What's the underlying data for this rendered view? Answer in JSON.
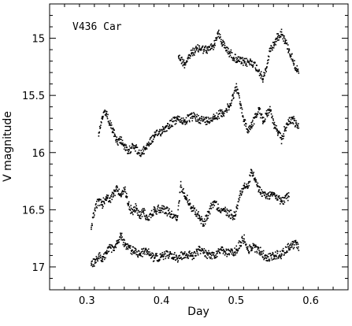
{
  "chart_data": {
    "type": "scatter",
    "title": "",
    "annotation": "V436 Car",
    "xlabel": "Day",
    "ylabel": "V magnitude",
    "xlim": [
      0.25,
      0.65
    ],
    "ylim": [
      17.2,
      14.7
    ],
    "y_inverted": true,
    "grid": false,
    "marker_color": "#000000",
    "x_ticks": [
      {
        "value": 0.3,
        "label": "0.3"
      },
      {
        "value": 0.4,
        "label": "0.4"
      },
      {
        "value": 0.5,
        "label": "0.5"
      },
      {
        "value": 0.6,
        "label": "0.6"
      }
    ],
    "y_ticks": [
      {
        "value": 15,
        "label": "15"
      },
      {
        "value": 15.5,
        "label": "15.5"
      },
      {
        "value": 16,
        "label": "16"
      },
      {
        "value": 16.5,
        "label": "16.5"
      },
      {
        "value": 17,
        "label": "17"
      }
    ],
    "series": [
      {
        "x": [
          0.422,
          0.43,
          0.44,
          0.45,
          0.46,
          0.47,
          0.475,
          0.48,
          0.485,
          0.49,
          0.5,
          0.51,
          0.52,
          0.53,
          0.535,
          0.54,
          0.545,
          0.55,
          0.555,
          0.56,
          0.565,
          0.57,
          0.575,
          0.58,
          0.583
        ],
        "y": [
          15.15,
          15.22,
          15.12,
          15.08,
          15.1,
          15.05,
          14.94,
          15.03,
          15.08,
          15.12,
          15.18,
          15.21,
          15.2,
          15.28,
          15.36,
          15.25,
          15.08,
          15.05,
          14.98,
          14.94,
          15.02,
          15.1,
          15.18,
          15.26,
          15.3
        ]
      },
      {
        "x": [
          0.315,
          0.32,
          0.325,
          0.33,
          0.335,
          0.34,
          0.345,
          0.35,
          0.355,
          0.36,
          0.365,
          0.37,
          0.375,
          0.38,
          0.39,
          0.4,
          0.41,
          0.42,
          0.43,
          0.44,
          0.45,
          0.46,
          0.47,
          0.48,
          0.49,
          0.495,
          0.5,
          0.505,
          0.51,
          0.515,
          0.52,
          0.525,
          0.53,
          0.535,
          0.54,
          0.545,
          0.55,
          0.555,
          0.56,
          0.565,
          0.57,
          0.575,
          0.58,
          0.583
        ],
        "y": [
          15.85,
          15.68,
          15.65,
          15.75,
          15.82,
          15.9,
          15.88,
          15.95,
          16.0,
          15.92,
          15.95,
          16.02,
          15.98,
          15.93,
          15.85,
          15.8,
          15.75,
          15.7,
          15.72,
          15.68,
          15.7,
          15.72,
          15.68,
          15.65,
          15.6,
          15.5,
          15.42,
          15.58,
          15.72,
          15.8,
          15.75,
          15.68,
          15.62,
          15.72,
          15.65,
          15.62,
          15.75,
          15.82,
          15.88,
          15.78,
          15.72,
          15.7,
          15.75,
          15.78
        ]
      },
      {
        "x": [
          0.305,
          0.31,
          0.315,
          0.32,
          0.325,
          0.33,
          0.335,
          0.34,
          0.345,
          0.35,
          0.355,
          0.36,
          0.365,
          0.37,
          0.375,
          0.38,
          0.39,
          0.4,
          0.41,
          0.42,
          0.425,
          0.43,
          0.44,
          0.45,
          0.455,
          0.46,
          0.465,
          0.47,
          0.475,
          0.497,
          0.5,
          0.505,
          0.51,
          0.515,
          0.52,
          0.525,
          0.53,
          0.54,
          0.55,
          0.56,
          0.57
        ],
        "y": [
          16.65,
          16.48,
          16.42,
          16.45,
          16.38,
          16.42,
          16.35,
          16.3,
          16.38,
          16.32,
          16.45,
          16.52,
          16.48,
          16.55,
          16.5,
          16.58,
          16.5,
          16.48,
          16.52,
          16.58,
          16.28,
          16.35,
          16.48,
          16.55,
          16.62,
          16.55,
          16.48,
          16.42,
          16.48,
          16.55,
          16.48,
          16.35,
          16.28,
          16.3,
          16.15,
          16.25,
          16.32,
          16.38,
          16.35,
          16.42,
          16.38
        ]
      },
      {
        "x": [
          0.305,
          0.31,
          0.315,
          0.32,
          0.325,
          0.33,
          0.335,
          0.34,
          0.345,
          0.35,
          0.36,
          0.37,
          0.38,
          0.39,
          0.4,
          0.41,
          0.42,
          0.43,
          0.44,
          0.45,
          0.46,
          0.47,
          0.48,
          0.49,
          0.5,
          0.505,
          0.51,
          0.515,
          0.52,
          0.53,
          0.54,
          0.55,
          0.56,
          0.57,
          0.575,
          0.58,
          0.583
        ],
        "y": [
          16.98,
          16.95,
          16.9,
          16.92,
          16.88,
          16.82,
          16.85,
          16.78,
          16.72,
          16.8,
          16.85,
          16.88,
          16.85,
          16.92,
          16.9,
          16.88,
          16.92,
          16.88,
          16.9,
          16.85,
          16.88,
          16.9,
          16.85,
          16.88,
          16.85,
          16.78,
          16.75,
          16.85,
          16.82,
          16.85,
          16.92,
          16.9,
          16.88,
          16.82,
          16.8,
          16.78,
          16.85
        ]
      }
    ]
  }
}
